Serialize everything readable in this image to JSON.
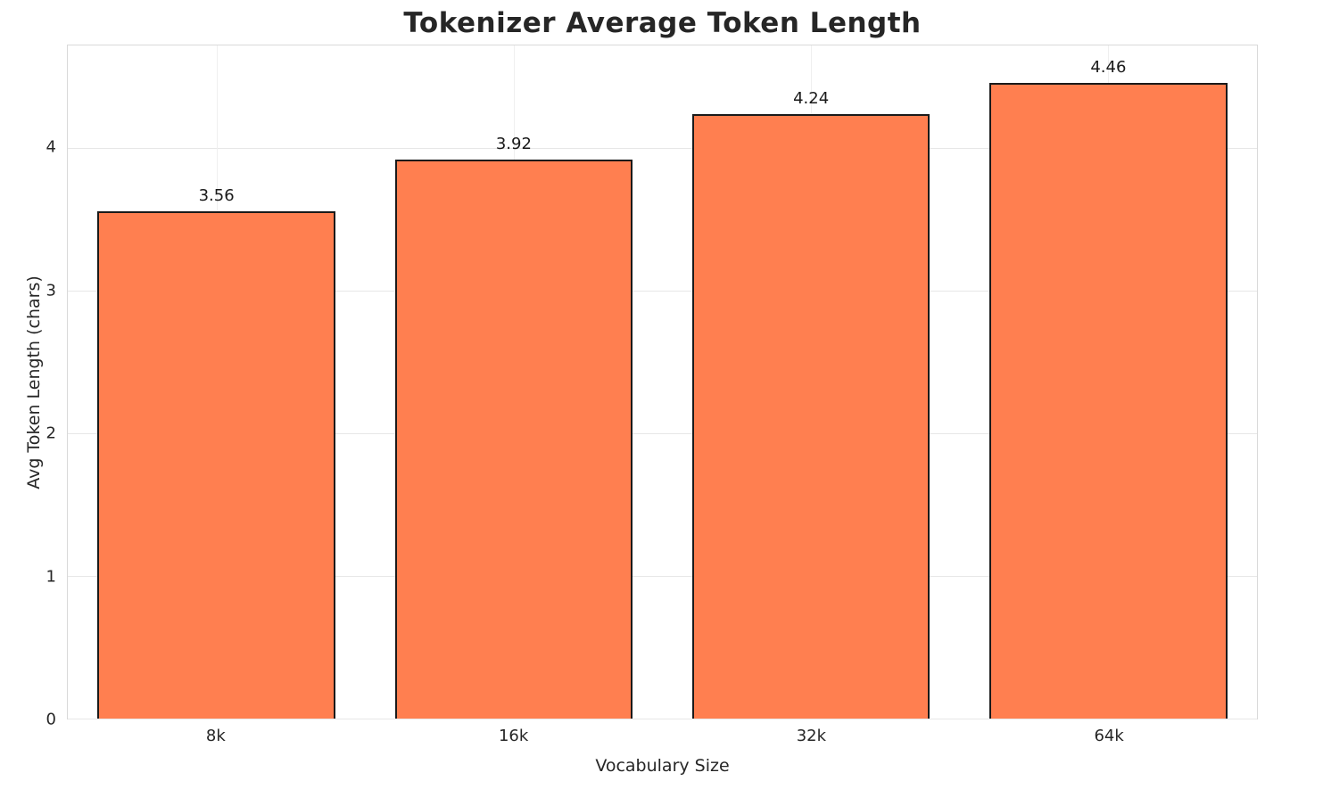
{
  "chart": {
    "title": "Tokenizer Average Token Length",
    "xlabel": "Vocabulary Size",
    "ylabel": "Avg Token Length (chars)"
  },
  "chart_data": {
    "type": "bar",
    "title": "Tokenizer Average Token Length",
    "xlabel": "Vocabulary Size",
    "ylabel": "Avg Token Length (chars)",
    "categories": [
      "8k",
      "16k",
      "32k",
      "64k"
    ],
    "values": [
      3.56,
      3.92,
      4.24,
      4.46
    ],
    "value_labels": [
      "3.56",
      "3.92",
      "4.24",
      "4.46"
    ],
    "ylim": [
      0,
      4.72
    ],
    "yticks": [
      0,
      1,
      2,
      3,
      4
    ],
    "grid": true,
    "legend": "none",
    "bar_color": "#ff7f50",
    "bar_edge_color": "#1a1a1a",
    "grid_color": "#e7e7e7",
    "background_color": "#ffffff",
    "bar_width_fraction": 0.8
  }
}
